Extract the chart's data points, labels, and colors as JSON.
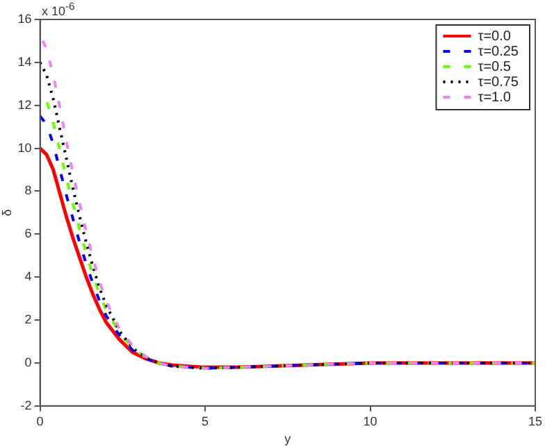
{
  "chart_data": {
    "type": "line",
    "xlabel": "y",
    "ylabel": "δ",
    "annotations": [
      "x 10$^{-6}$"
    ],
    "x": [
      0,
      0.2,
      0.4,
      0.6,
      0.8,
      1.0,
      1.2,
      1.4,
      1.6,
      1.8,
      2.0,
      2.4,
      2.8,
      3.2,
      3.6,
      4,
      5,
      6,
      7,
      8,
      9,
      10,
      12,
      15
    ],
    "series": [
      {
        "name": "τ=0.0",
        "color": "#ff0000",
        "line_style": "solid",
        "values": [
          10,
          9.7,
          9.0,
          7.9,
          6.8,
          5.8,
          4.9,
          4.0,
          3.2,
          2.5,
          1.9,
          1.1,
          0.5,
          0.2,
          0,
          -0.1,
          -0.2,
          -0.2,
          -0.15,
          -0.1,
          -0.05,
          0,
          0,
          0
        ]
      },
      {
        "name": "τ=0.25",
        "color": "#0000ff",
        "line_style": "dashed",
        "values": [
          11.5,
          11.1,
          10.2,
          9.0,
          7.8,
          6.7,
          5.6,
          4.6,
          3.7,
          2.9,
          2.2,
          1.3,
          0.6,
          0.2,
          0,
          -0.15,
          -0.25,
          -0.2,
          -0.15,
          -0.1,
          -0.05,
          0,
          0,
          0
        ]
      },
      {
        "name": "τ=0.5",
        "color": "#66ff00",
        "line_style": "dashed",
        "values": [
          12.7,
          12.2,
          11.2,
          9.9,
          8.6,
          7.4,
          6.2,
          5.1,
          4.1,
          3.2,
          2.5,
          1.4,
          0.7,
          0.25,
          0,
          -0.15,
          -0.25,
          -0.2,
          -0.15,
          -0.1,
          -0.05,
          0,
          0,
          0
        ]
      },
      {
        "name": "τ=0.75",
        "color": "#000000",
        "line_style": "dotted",
        "values": [
          14.0,
          13.4,
          12.3,
          10.9,
          9.5,
          8.1,
          6.8,
          5.6,
          4.5,
          3.5,
          2.7,
          1.5,
          0.7,
          0.25,
          0,
          -0.15,
          -0.25,
          -0.2,
          -0.15,
          -0.1,
          -0.05,
          0,
          0,
          0
        ]
      },
      {
        "name": "τ=1.0",
        "color": "#ee82ee",
        "line_style": "dashed",
        "values": [
          15.3,
          14.6,
          13.4,
          11.9,
          10.3,
          8.8,
          7.4,
          6.1,
          4.9,
          3.8,
          2.9,
          1.6,
          0.8,
          0.3,
          0,
          -0.15,
          -0.25,
          -0.2,
          -0.15,
          -0.1,
          -0.05,
          0,
          0,
          0
        ]
      }
    ],
    "xlim": [
      0,
      15
    ],
    "xticks": [
      0,
      5,
      10,
      15
    ],
    "ylim": [
      -2,
      16
    ],
    "yticks": [
      -2,
      0,
      2,
      4,
      6,
      8,
      10,
      12,
      14,
      16
    ],
    "grid": false,
    "legend": "top right",
    "marker": "none"
  }
}
